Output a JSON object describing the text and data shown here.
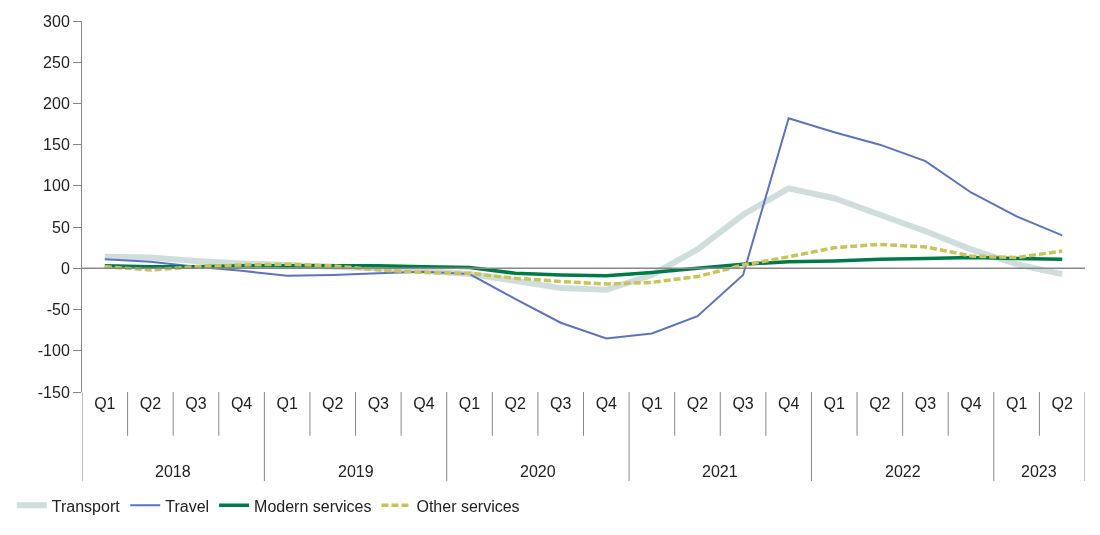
{
  "chart_data": {
    "type": "line",
    "categories": [
      "Q1",
      "Q2",
      "Q3",
      "Q4",
      "Q1",
      "Q2",
      "Q3",
      "Q4",
      "Q1",
      "Q2",
      "Q3",
      "Q4",
      "Q1",
      "Q2",
      "Q3",
      "Q4",
      "Q1",
      "Q2",
      "Q3",
      "Q4",
      "Q1",
      "Q2"
    ],
    "annotations": [
      "2018",
      "2019",
      "2020",
      "2021",
      "2022",
      "2023"
    ],
    "series": [
      {
        "name": "Transport",
        "color": "#cfdedd",
        "line_style": "solid",
        "values": [
          14,
          13,
          9,
          6,
          4,
          2,
          0,
          -3,
          -7,
          -15,
          -24,
          -26,
          -8,
          23,
          65,
          97,
          85,
          65,
          45,
          23,
          5,
          -7
        ]
      },
      {
        "name": "Travel",
        "color": "#5b73c0",
        "line_style": "solid",
        "values": [
          11,
          8,
          2,
          -3,
          -9,
          -8,
          -6,
          -4,
          -7,
          -37,
          -66,
          -85,
          -79,
          -58,
          -8,
          182,
          165,
          150,
          130,
          92,
          63,
          40
        ]
      },
      {
        "name": "Modern services",
        "color": "#007a47",
        "line_style": "solid",
        "values": [
          3,
          2,
          2,
          3,
          3,
          3,
          3,
          2,
          1,
          -6,
          -8,
          -9,
          -5,
          0,
          5,
          8,
          9,
          11,
          12,
          13,
          12,
          11
        ]
      },
      {
        "name": "Other services",
        "color": "#c9c35a",
        "line_style": "dashed",
        "values": [
          2,
          -2,
          2,
          4,
          5,
          3,
          -2,
          -5,
          -6,
          -12,
          -16,
          -19,
          -17,
          -10,
          4,
          14,
          25,
          29,
          26,
          15,
          13,
          21
        ]
      }
    ],
    "ref_lines": [
      {
        "axis": "y",
        "value": 0,
        "color": "#888888"
      }
    ],
    "ylim": [
      -150,
      300
    ],
    "yticks": [
      -150,
      -100,
      -50,
      0,
      50,
      100,
      150,
      200,
      250,
      300
    ],
    "legend": "bottom left",
    "marker": "none"
  }
}
